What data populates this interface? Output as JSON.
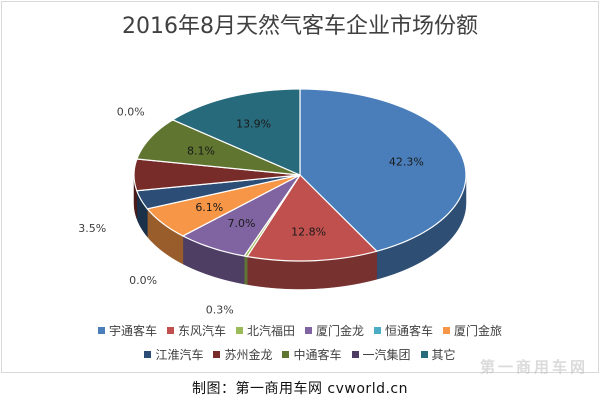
{
  "chart_data": {
    "type": "pie",
    "title": "2016年8月天然气客车企业市场份额",
    "slices": [
      {
        "name": "宇通客车",
        "value": 42.3,
        "label": "42.3%",
        "color": "#4a7ebb"
      },
      {
        "name": "东风汽车",
        "value": 12.8,
        "label": "12.8%",
        "color": "#c0504d"
      },
      {
        "name": "北汽福田",
        "value": 0.3,
        "label": "0.3%",
        "color": "#9bbb59"
      },
      {
        "name": "厦门金龙",
        "value": 7.0,
        "label": "7.0%",
        "color": "#8064a2"
      },
      {
        "name": "恒通客车",
        "value": 0.0,
        "label": "0.0%",
        "color": "#4bacc6"
      },
      {
        "name": "厦门金旅",
        "value": 6.1,
        "label": "6.1%",
        "color": "#f79646"
      },
      {
        "name": "江淮汽车",
        "value": 3.5,
        "label": "3.5%",
        "color": "#2c4d75"
      },
      {
        "name": "苏州金龙",
        "value": 5.9,
        "label": "",
        "color": "#772c2a"
      },
      {
        "name": "中通客车",
        "value": 8.1,
        "label": "8.1%",
        "color": "#5f7530"
      },
      {
        "name": "一汽集团",
        "value": 0.0,
        "label": "0.0%",
        "color": "#4d3b62"
      },
      {
        "name": "其它",
        "value": 13.9,
        "label": "13.9%",
        "color": "#276a7c"
      }
    ],
    "legend_position": "bottom"
  },
  "credit": "制图：第一商用车网 cvworld.cn",
  "watermark": "第一商用车网"
}
